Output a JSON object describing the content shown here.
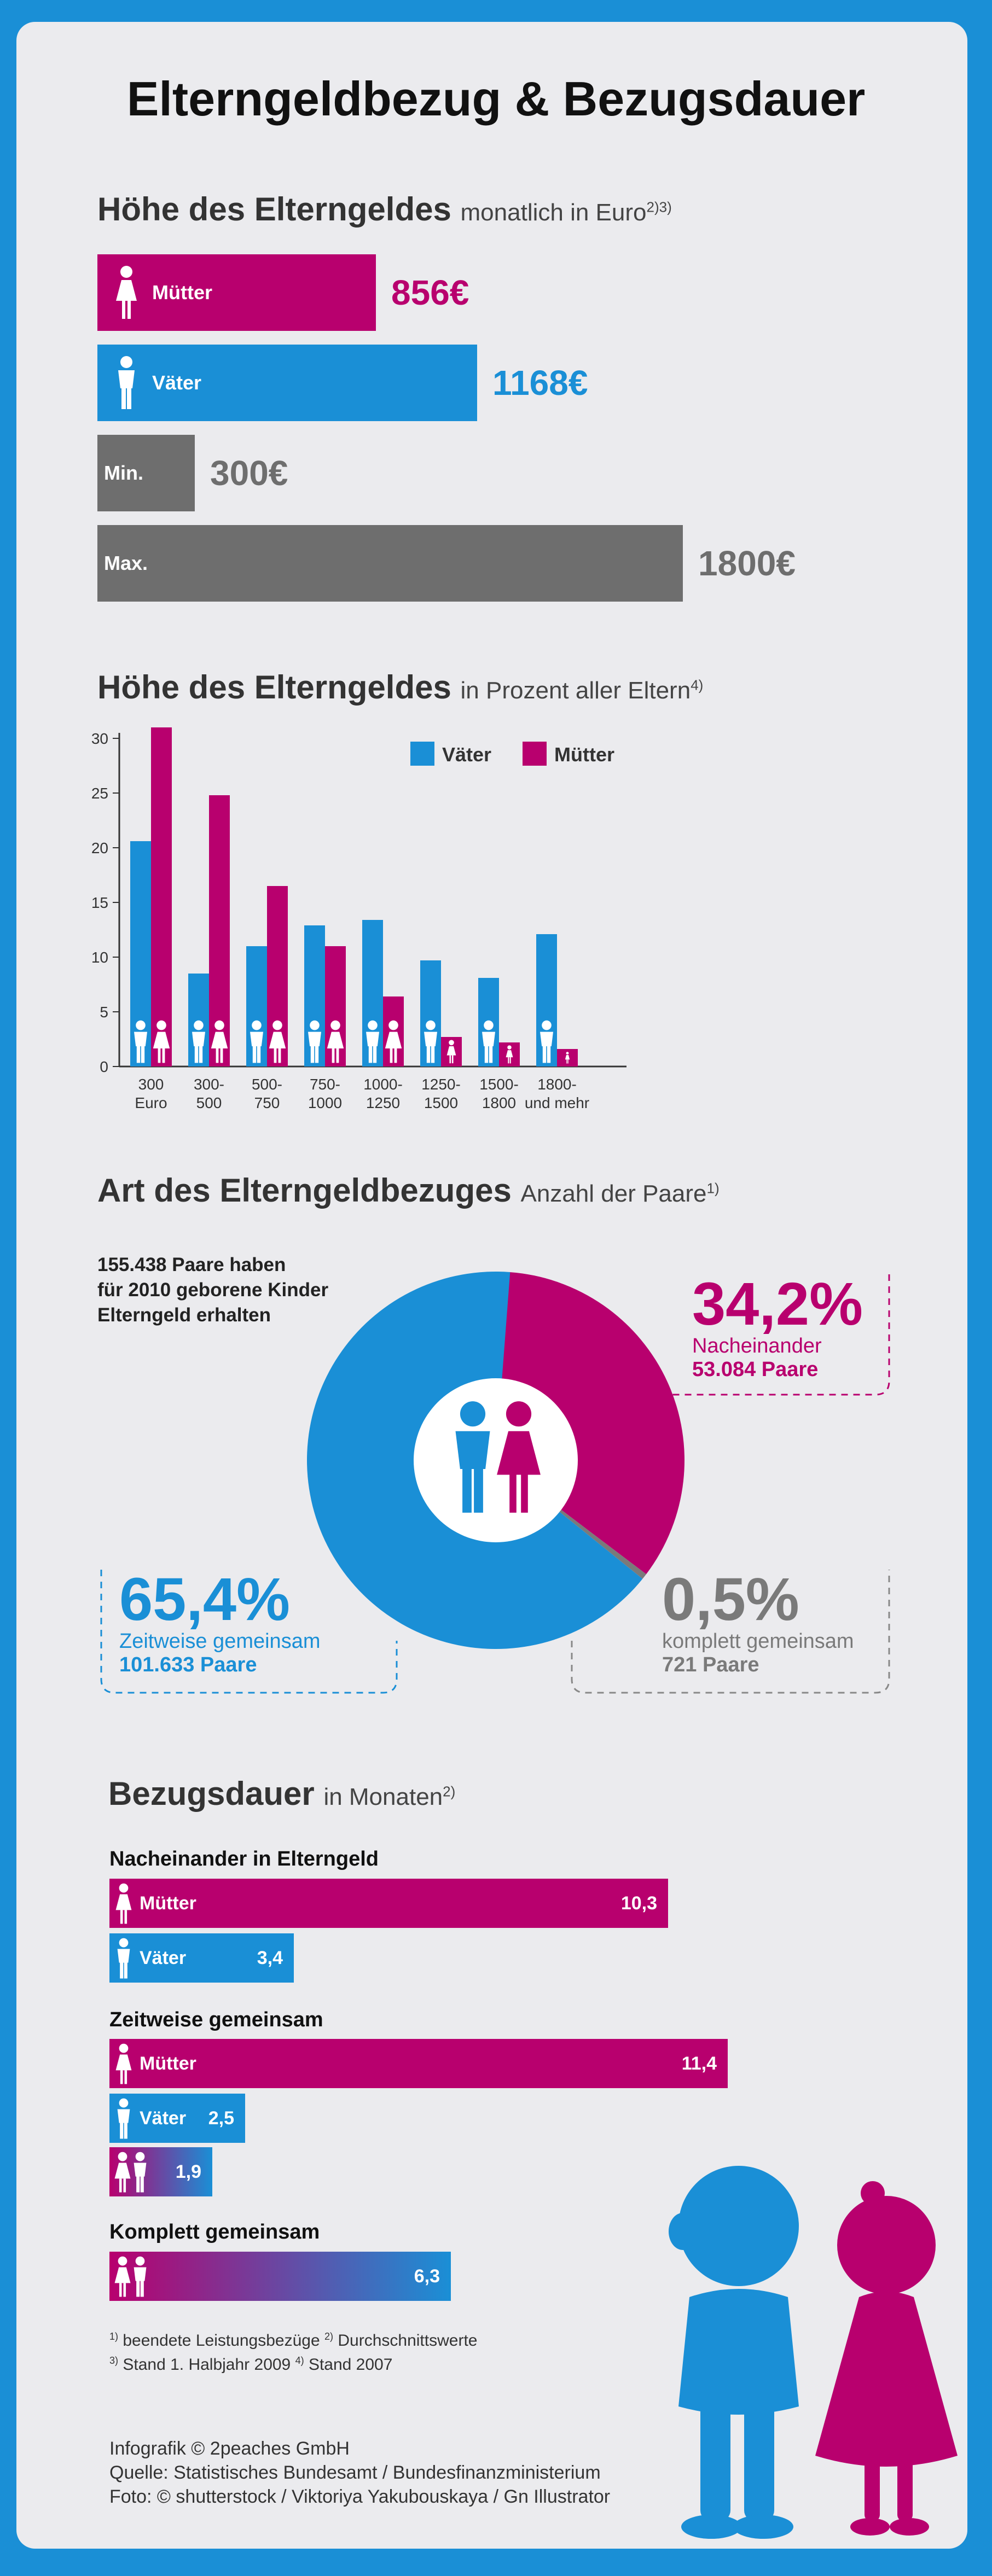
{
  "title": "Elterngeldbezug & Bezugsdauer",
  "colors": {
    "blue": "#1a8fd6",
    "magenta": "#b8006e",
    "gray": "#6e6e6e"
  },
  "section1": {
    "title": "Höhe des Elterngeldes",
    "subtitle": "monatlich in Euro",
    "subtitle_sup": "2)3)",
    "bars": [
      {
        "label": "Mütter",
        "value": 856,
        "display": "856€",
        "color": "magenta",
        "icon": "woman-icon"
      },
      {
        "label": "Väter",
        "value": 1168,
        "display": "1168€",
        "color": "blue",
        "icon": "man-icon"
      },
      {
        "label": "Min.",
        "value": 300,
        "display": "300€",
        "color": "gray",
        "icon": ""
      },
      {
        "label": "Max.",
        "value": 1800,
        "display": "1800€",
        "color": "gray",
        "icon": ""
      }
    ]
  },
  "section2": {
    "title": "Höhe des Elterngeldes",
    "subtitle": "in Prozent aller Eltern",
    "subtitle_sup": "4)"
  },
  "chart_data": {
    "type": "bar",
    "categories": [
      "300 Euro",
      "300-500",
      "500-750",
      "750-1000",
      "1000-1250",
      "1250-1500",
      "1500-1800",
      "1800-und mehr"
    ],
    "category_lines": [
      [
        "300",
        "Euro"
      ],
      [
        "300-",
        "500"
      ],
      [
        "500-",
        "750"
      ],
      [
        "750-",
        "1000"
      ],
      [
        "1000-",
        "1250"
      ],
      [
        "1250-",
        "1500"
      ],
      [
        "1500-",
        "1800"
      ],
      [
        "1800-",
        "und mehr"
      ]
    ],
    "series": [
      {
        "name": "Väter",
        "color": "#1a8fd6",
        "values": [
          20.6,
          8.5,
          11.0,
          12.9,
          13.4,
          9.7,
          8.1,
          12.1
        ]
      },
      {
        "name": "Mütter",
        "color": "#b8006e",
        "values": [
          31.0,
          24.8,
          16.5,
          11.0,
          6.4,
          2.7,
          2.2,
          1.6
        ]
      }
    ],
    "ylim": [
      0,
      30
    ],
    "yticks": [
      0,
      5,
      10,
      15,
      20,
      25,
      30
    ],
    "grid": false,
    "legend": "top-right"
  },
  "section3": {
    "title": "Art des Elterngeldbezuges",
    "subtitle": "Anzahl der Paare",
    "subtitle_sup": "1)",
    "intro": [
      "155.438 Paare haben",
      "für 2010 geborene Kinder",
      "Elterngeld erhalten"
    ],
    "pie": [
      {
        "percent": 34.2,
        "display": "34,2%",
        "label": "Nacheinander",
        "count": "53.084 Paare",
        "color": "#b8006e"
      },
      {
        "percent": 65.4,
        "display": "65,4%",
        "label": "Zeitweise gemeinsam",
        "count": "101.633 Paare",
        "color": "#1a8fd6"
      },
      {
        "percent": 0.5,
        "display": "0,5%",
        "label": "komplett gemeinsam",
        "count": "721 Paare",
        "color": "#7a7a7a"
      }
    ]
  },
  "section4": {
    "title": "Bezugsdauer",
    "subtitle": "in Monaten",
    "subtitle_sup": "2)",
    "groups": [
      {
        "label": "Nacheinander in Elterngeld",
        "bars": [
          {
            "label": "Mütter",
            "value": 10.3,
            "display": "10,3",
            "style": "magenta"
          },
          {
            "label": "Väter",
            "value": 3.4,
            "display": "3,4",
            "style": "blue"
          }
        ]
      },
      {
        "label": "Zeitweise gemeinsam",
        "bars": [
          {
            "label": "Mütter",
            "value": 11.4,
            "display": "11,4",
            "style": "magenta"
          },
          {
            "label": "Väter",
            "value": 2.5,
            "display": "2,5",
            "style": "blue"
          },
          {
            "label": "",
            "value": 1.9,
            "display": "1,9",
            "style": "gradient"
          }
        ]
      },
      {
        "label": "Komplett gemeinsam",
        "bars": [
          {
            "label": "",
            "value": 6.3,
            "display": "6,3",
            "style": "gradient"
          }
        ]
      }
    ]
  },
  "footnotes": {
    "f1_sup": "1)",
    "f1": "beendete Leistungsbezüge",
    "f2_sup": "2)",
    "f2": "Durchschnittswerte",
    "f3_sup": "3)",
    "f3": "Stand 1. Halbjahr 2009",
    "f4_sup": "4)",
    "f4": "Stand 2007"
  },
  "credits": [
    "Infografik © 2peaches GmbH",
    "Quelle: Statistisches Bundesamt / Bundesfinanzministerium",
    "Foto: © shutterstock / Viktoriya Yakubouskaya / Gn Illustrator"
  ]
}
